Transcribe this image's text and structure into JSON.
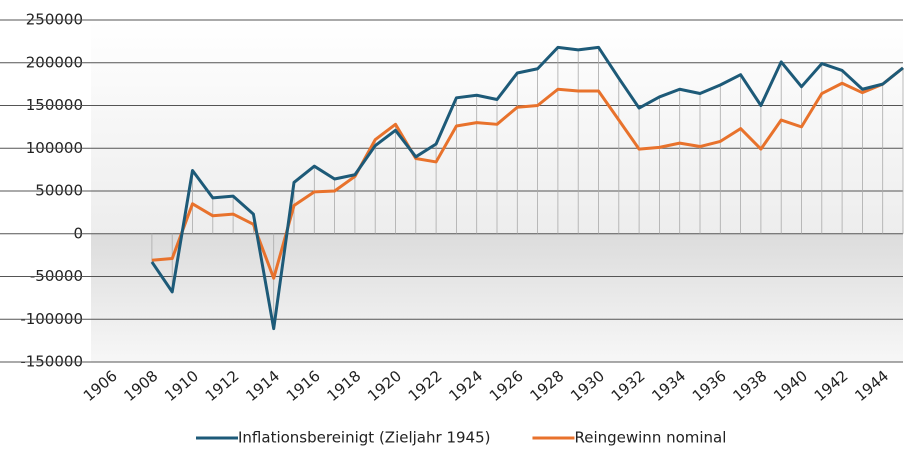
{
  "chart_data": {
    "type": "line",
    "x": [
      1908,
      1909,
      1910,
      1911,
      1912,
      1913,
      1914,
      1915,
      1916,
      1917,
      1918,
      1919,
      1920,
      1921,
      1922,
      1923,
      1924,
      1925,
      1926,
      1927,
      1928,
      1929,
      1930,
      1931,
      1932,
      1933,
      1934,
      1935,
      1936,
      1937,
      1938,
      1939,
      1940,
      1941,
      1942,
      1943,
      1944,
      1945
    ],
    "series": [
      {
        "name": "Inflationsbereinigt (Zieljahr 1945)",
        "color": "#1d5a78",
        "values": [
          -33000,
          -68000,
          74000,
          42000,
          44000,
          23000,
          -111000,
          60000,
          79000,
          64000,
          69000,
          103000,
          121000,
          90000,
          105000,
          159000,
          162000,
          157000,
          188000,
          193000,
          218000,
          215000,
          218000,
          182000,
          147000,
          160000,
          169000,
          164000,
          174000,
          186000,
          150000,
          201000,
          172000,
          199000,
          191000,
          169000,
          175000,
          194000
        ]
      },
      {
        "name": "Reingewinn nominal",
        "color": "#e8722c",
        "values": [
          -31000,
          -29000,
          35000,
          21000,
          23000,
          11000,
          -52000,
          33000,
          49000,
          50000,
          67000,
          110000,
          128000,
          88000,
          84000,
          126000,
          130000,
          128000,
          148000,
          150000,
          169000,
          167000,
          167000,
          133000,
          99000,
          101000,
          106000,
          102000,
          108000,
          123000,
          99000,
          133000,
          125000,
          164000,
          176000,
          165000,
          175000,
          194000
        ]
      }
    ],
    "xlim": [
      1905,
      1945
    ],
    "xticks": [
      1906,
      1908,
      1910,
      1912,
      1914,
      1916,
      1918,
      1920,
      1922,
      1924,
      1926,
      1928,
      1930,
      1932,
      1934,
      1936,
      1938,
      1940,
      1942,
      1944
    ],
    "ylim": [
      -150000,
      250000
    ],
    "yticks": [
      -150000,
      -100000,
      -50000,
      0,
      50000,
      100000,
      150000,
      200000,
      250000
    ],
    "grid": true,
    "legend": "bottom"
  }
}
